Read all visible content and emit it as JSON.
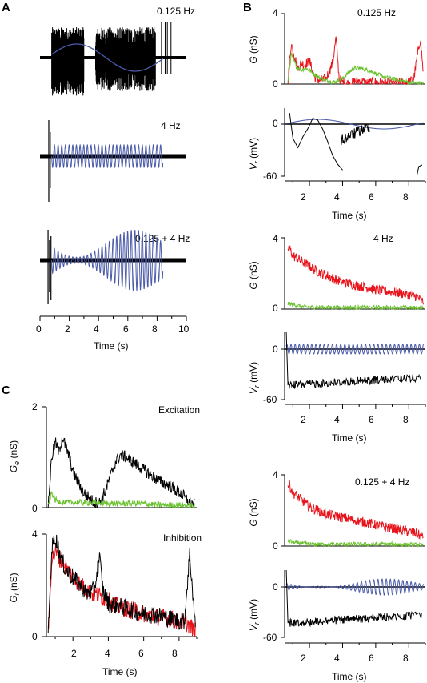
{
  "colors": {
    "blue": "#4a5aa8",
    "red": "#e8141c",
    "green": "#6cc230",
    "black": "#000000"
  },
  "panels": {
    "A": {
      "letter": "A",
      "traces": [
        {
          "label": "0.125 Hz",
          "stimulus": "sine",
          "freq_hz": 0.125,
          "spiking": "bursts 0.8-3.0 s, 3.8-8.4 s"
        },
        {
          "label": "4 Hz",
          "stimulus": "sine",
          "freq_hz": 4
        },
        {
          "label": "0.125 + 4 Hz",
          "stimulus": "sine x sine",
          "freq_hz": [
            0.125,
            4
          ]
        }
      ],
      "x_ticks": [
        "0",
        "2",
        "4",
        "6",
        "8",
        "10"
      ],
      "xlabel": "Time (s)"
    },
    "B": {
      "letter": "B"
    },
    "C": {
      "letter": "C"
    }
  },
  "chart_data": [
    {
      "id": "A",
      "type": "line",
      "xlabel": "Time (s)",
      "xlim": [
        0,
        10
      ],
      "series": [
        {
          "stim": "0.125 Hz",
          "x": [
            0.5,
            2.5,
            4.5,
            6.5,
            8.5
          ],
          "values": [
            0,
            -1,
            0,
            1,
            0
          ]
        },
        {
          "stim": "4 Hz",
          "x": [
            0.5,
            8.5
          ],
          "values": [
            1,
            1
          ]
        },
        {
          "stim": "0.125 + 4 Hz",
          "x": [
            0.5,
            2.5,
            4.5,
            6.5,
            8.5
          ],
          "values": [
            0.3,
            0.1,
            0.3,
            1,
            0.3
          ]
        }
      ]
    },
    {
      "id": "B-0.125",
      "type": "line",
      "title": "0.125 Hz",
      "xlabel": "Time (s)",
      "x_ticks": [
        "2",
        "4",
        "6",
        "8"
      ],
      "xlim": [
        0.5,
        9
      ],
      "top": {
        "ylabel": "G (nS)",
        "ylim": [
          0,
          4
        ],
        "y_ticks": [
          "0",
          "4"
        ],
        "series": [
          {
            "color": "red",
            "x": [
              0.7,
              0.9,
              1.1,
              1.3,
              1.5,
              1.7,
              2.0,
              2.3,
              2.6,
              3.0,
              3.4,
              3.6,
              3.8,
              4.0,
              4.3,
              4.6,
              5.0,
              5.5,
              6.0,
              6.5,
              7.0,
              7.5,
              8.0,
              8.3,
              8.5,
              8.7,
              8.9
            ],
            "values": [
              0.2,
              2.3,
              1.6,
              0.9,
              1.2,
              1.1,
              1.3,
              0.4,
              0.2,
              0.3,
              1.2,
              2.6,
              0.3,
              0.1,
              0.05,
              0.1,
              0.2,
              0.05,
              0.1,
              0.05,
              0.05,
              0.05,
              0.1,
              0.3,
              1.5,
              2.6,
              0.3
            ]
          },
          {
            "color": "green",
            "x": [
              0.7,
              0.9,
              1.2,
              1.5,
              1.8,
              2.1,
              2.5,
              3.0,
              3.5,
              4.0,
              4.3,
              4.7,
              5.0,
              5.5,
              6.0,
              6.5,
              7.0,
              7.5,
              8.0,
              8.5,
              8.9
            ],
            "values": [
              0.1,
              1.7,
              1.0,
              0.8,
              0.9,
              0.7,
              0.4,
              0.2,
              0.1,
              0.3,
              0.6,
              0.9,
              0.9,
              0.8,
              0.6,
              0.4,
              0.3,
              0.2,
              0.1,
              0.05,
              0.05
            ]
          }
        ]
      },
      "bottom": {
        "ylabel": "V_r (mV)",
        "ylim": [
          -60,
          10
        ],
        "y_ticks": [
          "0",
          "-60"
        ]
      }
    },
    {
      "id": "B-4",
      "type": "line",
      "title": "4 Hz",
      "xlabel": "Time (s)",
      "x_ticks": [
        "2",
        "4",
        "6",
        "8"
      ],
      "xlim": [
        0.5,
        9
      ],
      "top": {
        "ylabel": "G (nS)",
        "ylim": [
          0,
          4
        ],
        "y_ticks": [
          "0",
          "4"
        ],
        "series": [
          {
            "color": "red",
            "x": [
              0.8,
              1.0,
              1.5,
              2.0,
              2.5,
              3.0,
              3.5,
              4.0,
              4.5,
              5.0,
              5.5,
              6.0,
              6.5,
              7.0,
              7.5,
              8.0,
              8.5,
              8.8
            ],
            "values": [
              3.4,
              3.0,
              2.7,
              2.4,
              2.1,
              1.9,
              1.7,
              1.5,
              1.4,
              1.3,
              1.2,
              1.1,
              1.0,
              0.95,
              0.9,
              0.8,
              0.7,
              0.4
            ]
          },
          {
            "color": "green",
            "x": [
              0.8,
              1.0,
              1.5,
              2.0,
              3.0,
              4.0,
              5.0,
              6.0,
              7.0,
              8.0,
              8.8
            ],
            "values": [
              0.3,
              0.25,
              0.15,
              0.1,
              0.1,
              0.1,
              0.08,
              0.08,
              0.08,
              0.08,
              0.05
            ]
          }
        ]
      },
      "bottom": {
        "ylabel": "V_r (mV)",
        "ylim": [
          -60,
          10
        ],
        "y_ticks": [
          "0",
          "-60"
        ]
      }
    },
    {
      "id": "B-0.125+4",
      "type": "line",
      "title": "0.125 + 4 Hz",
      "xlabel": "Time (s)",
      "x_ticks": [
        "2",
        "4",
        "6",
        "8"
      ],
      "xlim": [
        0.5,
        9
      ],
      "top": {
        "ylabel": "G (nS)",
        "ylim": [
          0,
          4
        ],
        "y_ticks": [
          "0",
          "4"
        ],
        "series": [
          {
            "color": "red",
            "x": [
              0.8,
              1.0,
              1.5,
              2.0,
              2.5,
              3.0,
              3.5,
              4.0,
              4.5,
              5.0,
              5.5,
              6.0,
              6.5,
              7.0,
              7.5,
              8.0,
              8.5,
              8.8
            ],
            "values": [
              3.4,
              3.0,
              2.6,
              2.2,
              2.0,
              1.8,
              1.7,
              1.6,
              1.5,
              1.4,
              1.3,
              1.2,
              1.1,
              1.0,
              0.9,
              0.8,
              0.7,
              0.5
            ]
          },
          {
            "color": "green",
            "x": [
              0.8,
              1.0,
              1.5,
              2.0,
              3.0,
              4.0,
              5.0,
              6.0,
              7.0,
              8.0,
              8.8
            ],
            "values": [
              0.3,
              0.2,
              0.15,
              0.1,
              0.1,
              0.1,
              0.1,
              0.1,
              0.1,
              0.08,
              0.05
            ]
          }
        ]
      },
      "bottom": {
        "ylabel": "V_r (mV)",
        "ylim": [
          -60,
          10
        ],
        "y_ticks": [
          "0",
          "-60"
        ]
      }
    },
    {
      "id": "C-excitation",
      "type": "line",
      "title": "Excitation",
      "ylabel": "G_e (nS)",
      "ylim": [
        0,
        2
      ],
      "y_ticks": [
        "0",
        "2"
      ],
      "xlim": [
        0.5,
        9
      ],
      "series": [
        {
          "color": "black",
          "x": [
            0.6,
            0.8,
            1.0,
            1.2,
            1.4,
            1.6,
            1.8,
            2.0,
            2.3,
            2.6,
            2.9,
            3.2,
            3.5,
            3.8,
            4.1,
            4.4,
            4.7,
            5.0,
            5.4,
            5.8,
            6.2,
            6.6,
            7.0,
            7.4,
            7.8,
            8.2,
            8.6,
            8.9
          ],
          "values": [
            0.05,
            1.0,
            1.3,
            1.1,
            1.4,
            1.2,
            1.0,
            0.7,
            0.5,
            0.3,
            0.2,
            0.1,
            0.1,
            0.3,
            0.6,
            0.9,
            1.05,
            1.0,
            0.9,
            0.8,
            0.7,
            0.6,
            0.5,
            0.45,
            0.35,
            0.25,
            0.1,
            0.05
          ]
        },
        {
          "color": "green",
          "x": [
            0.6,
            0.8,
            1.0,
            1.5,
            2.0,
            3.0,
            4.0,
            5.0,
            6.0,
            7.0,
            8.0,
            8.9
          ],
          "values": [
            0.05,
            0.3,
            0.15,
            0.1,
            0.1,
            0.1,
            0.08,
            0.08,
            0.08,
            0.05,
            0.05,
            0.03
          ]
        }
      ]
    },
    {
      "id": "C-inhibition",
      "type": "line",
      "title": "Inhibition",
      "ylabel": "G_i (nS)",
      "ylim": [
        0,
        4
      ],
      "y_ticks": [
        "0",
        "4"
      ],
      "xlim": [
        0.5,
        9
      ],
      "xlabel": "Time (s)",
      "x_ticks": [
        "2",
        "4",
        "6",
        "8"
      ],
      "series": [
        {
          "color": "red",
          "x": [
            0.6,
            0.8,
            1.0,
            1.5,
            2.0,
            2.5,
            3.0,
            3.5,
            4.0,
            4.5,
            5.0,
            5.5,
            6.0,
            6.5,
            7.0,
            7.5,
            8.0,
            8.5,
            8.9
          ],
          "values": [
            0.1,
            3.0,
            3.3,
            2.8,
            2.3,
            2.0,
            1.7,
            1.6,
            1.4,
            1.2,
            1.1,
            1.0,
            0.9,
            0.8,
            0.75,
            0.7,
            0.6,
            0.5,
            0.2
          ]
        },
        {
          "color": "black",
          "x": [
            0.6,
            0.8,
            1.0,
            1.3,
            1.6,
            2.0,
            2.4,
            2.8,
            3.2,
            3.5,
            3.7,
            4.0,
            4.5,
            5.0,
            5.5,
            6.0,
            6.5,
            7.0,
            7.5,
            8.0,
            8.3,
            8.6,
            8.8,
            8.95
          ],
          "values": [
            0.1,
            3.4,
            3.9,
            3.1,
            2.6,
            2.3,
            2.0,
            1.7,
            1.8,
            3.1,
            1.8,
            1.3,
            1.2,
            1.1,
            1.0,
            0.9,
            0.85,
            0.8,
            0.7,
            0.6,
            0.6,
            3.2,
            1.5,
            0.1
          ]
        }
      ]
    }
  ],
  "labels": {
    "A_title_1": "0.125 Hz",
    "A_title_2": "4 Hz",
    "A_title_3": "0.125 + 4 Hz",
    "A_xlabel": "Time (s)",
    "B1_title": "0.125 Hz",
    "B2_title": "4 Hz",
    "B3_title": "0.125 + 4 Hz",
    "B_xlabel": "Time (s)",
    "C_title_top": "Excitation",
    "C_title_bottom": "Inhibition",
    "C_xlabel": "Time (s)",
    "G_label": "G (nS)",
    "Vr_prefix": "V",
    "Vr_sub": "r",
    "Vr_suffix": " (mV)",
    "Ge_prefix": "G",
    "Ge_sub": "e",
    "Gi_sub": "i",
    "units_nS": " (nS)",
    "tick_0": "0",
    "tick_2": "2",
    "tick_4": "4",
    "tick_6": "6",
    "tick_8": "8",
    "tick_10": "10",
    "tick_m60": "-60"
  }
}
